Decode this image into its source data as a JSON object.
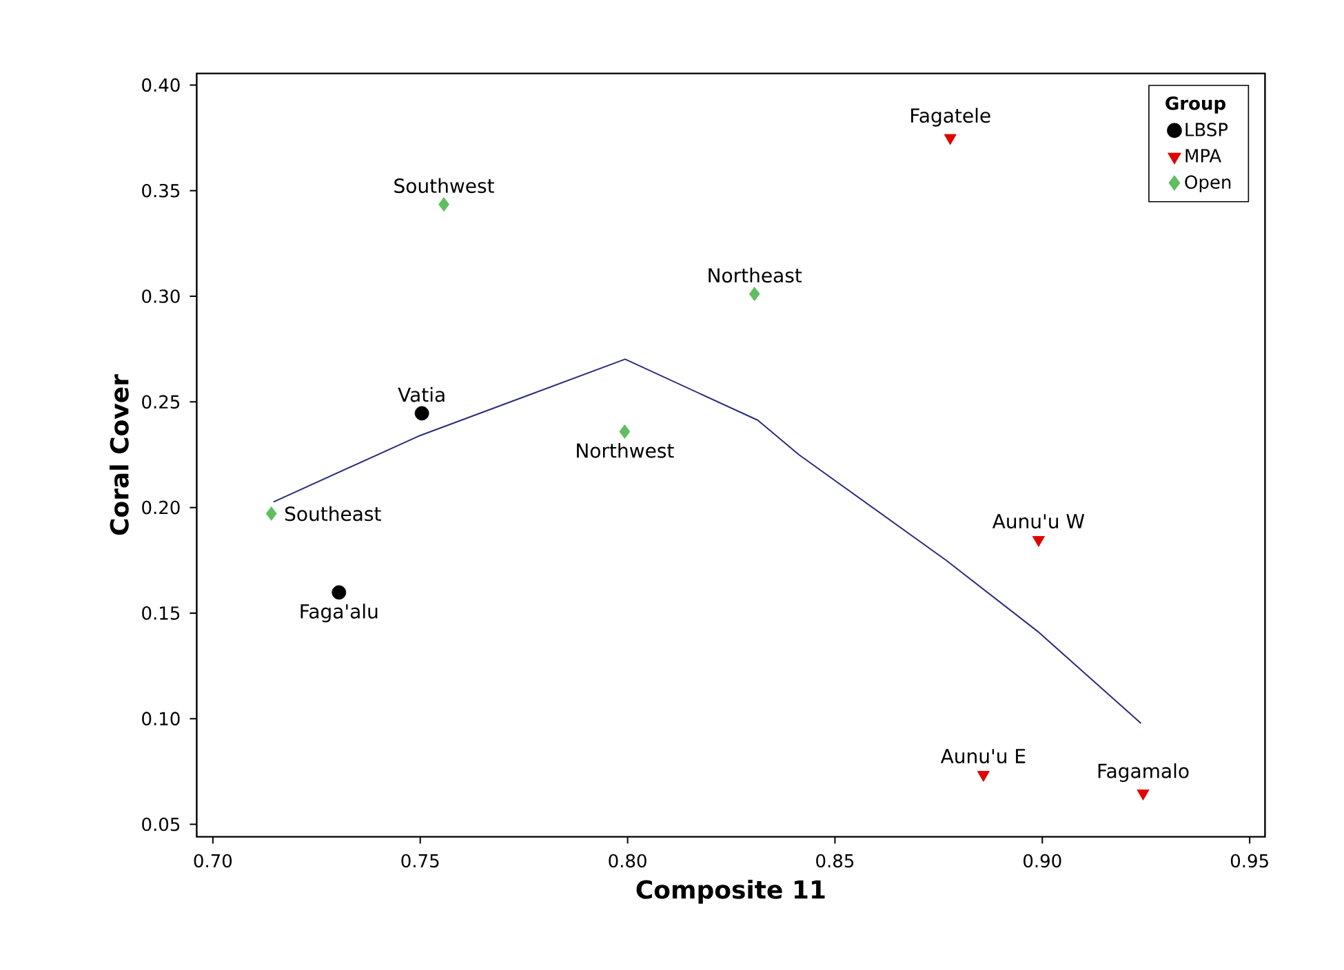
{
  "chart_data": {
    "type": "scatter",
    "xlabel": "Composite 11",
    "ylabel": "Coral Cover",
    "legend_title": "Group",
    "legend": "top right",
    "xlim": [
      0.6961,
      0.9537
    ],
    "ylim": [
      0.0441,
      0.4055
    ],
    "xticks": [
      {
        "value": 0.7,
        "label": "0.70"
      },
      {
        "value": 0.75,
        "label": "0.75"
      },
      {
        "value": 0.8,
        "label": "0.80"
      },
      {
        "value": 0.85,
        "label": "0.85"
      },
      {
        "value": 0.9,
        "label": "0.90"
      },
      {
        "value": 0.95,
        "label": "0.95"
      }
    ],
    "yticks": [
      {
        "value": 0.05,
        "label": "0.05"
      },
      {
        "value": 0.1,
        "label": "0.10"
      },
      {
        "value": 0.15,
        "label": "0.15"
      },
      {
        "value": 0.2,
        "label": "0.20"
      },
      {
        "value": 0.25,
        "label": "0.25"
      },
      {
        "value": 0.3,
        "label": "0.30"
      },
      {
        "value": 0.35,
        "label": "0.35"
      },
      {
        "value": 0.4,
        "label": "0.40"
      }
    ],
    "series": [
      {
        "name": "LBSP",
        "color": "#000000",
        "marker": "circle",
        "x": [
          0.7504,
          0.7304
        ],
        "values": [
          0.2446,
          0.1598
        ]
      },
      {
        "name": "MPA",
        "color": "#e00000",
        "marker": "triangle",
        "x": [
          0.8778,
          0.8991,
          0.8858,
          0.9243
        ],
        "values": [
          0.375,
          0.1847,
          0.0735,
          0.0647
        ]
      },
      {
        "name": "Open",
        "color": "#5fbf5f",
        "marker": "diamond",
        "x": [
          0.7557,
          0.7993,
          0.8306,
          0.7141
        ],
        "values": [
          0.3435,
          0.2359,
          0.3011,
          0.1971
        ]
      },
      {
        "type": "line",
        "color": "#2b2b7a",
        "x": [
          0.7146,
          0.7495,
          0.7994,
          0.8314,
          0.8413,
          0.8768,
          0.8989,
          0.9238
        ],
        "values": [
          0.2026,
          0.2337,
          0.2702,
          0.2413,
          0.225,
          0.175,
          0.1413,
          0.0978
        ]
      }
    ],
    "annotations": [
      {
        "text": "Southwest",
        "x": 0.7557,
        "y": 0.3435
      },
      {
        "text": "Vatia",
        "x": 0.7504,
        "y": 0.2446
      },
      {
        "text": "Northwest",
        "x": 0.7993,
        "y": 0.2359
      },
      {
        "text": "Northeast",
        "x": 0.8306,
        "y": 0.3011
      },
      {
        "text": "Fagatele",
        "x": 0.8778,
        "y": 0.375
      },
      {
        "text": "Southeast",
        "x": 0.7141,
        "y": 0.1971
      },
      {
        "text": "Faga'alu",
        "x": 0.7304,
        "y": 0.1598
      },
      {
        "text": "Aunu'u W",
        "x": 0.8991,
        "y": 0.1847
      },
      {
        "text": "Aunu'u E",
        "x": 0.8858,
        "y": 0.0735
      },
      {
        "text": "Fagamalo",
        "x": 0.9243,
        "y": 0.0647
      }
    ]
  }
}
